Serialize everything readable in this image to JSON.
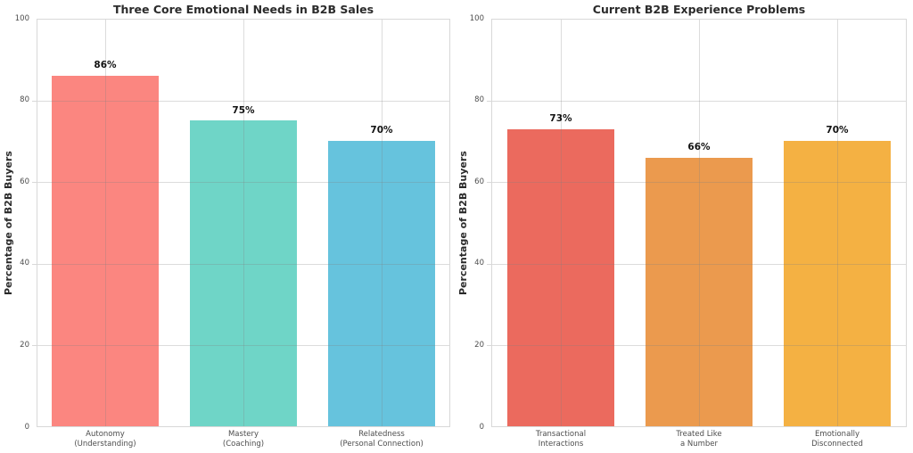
{
  "style": {
    "background": "#ffffff",
    "spine_color": "#d8d8d8",
    "grid_color": "rgba(130,130,130,0.28)",
    "tick_mark_color": "#d8d8d8",
    "tick_label_color": "#4d4d4d",
    "title_color": "#2b2b2b",
    "value_label_color": "#111111"
  },
  "chart_data": [
    {
      "type": "bar",
      "title": "Three Core Emotional Needs in B2B Sales",
      "ylabel": "Percentage of B2B Buyers",
      "xlabel": "",
      "ylim": [
        0,
        100
      ],
      "yticks": [
        0,
        20,
        40,
        60,
        80,
        100
      ],
      "categories": [
        [
          "Autonomy",
          "(Understanding)"
        ],
        [
          "Mastery",
          "(Coaching)"
        ],
        [
          "Relatedness",
          "(Personal Connection)"
        ]
      ],
      "values": [
        86,
        75,
        70
      ],
      "value_labels": [
        "86%",
        "75%",
        "70%"
      ],
      "bar_colors": [
        "#FB8680",
        "#6FD5C7",
        "#66C3DD"
      ],
      "grid": true,
      "legend": "none"
    },
    {
      "type": "bar",
      "title": "Current B2B Experience Problems",
      "ylabel": "Percentage of B2B Buyers",
      "xlabel": "",
      "ylim": [
        0,
        100
      ],
      "yticks": [
        0,
        20,
        40,
        60,
        80,
        100
      ],
      "categories": [
        [
          "Transactional",
          "Interactions"
        ],
        [
          "Treated Like",
          "a Number"
        ],
        [
          "Emotionally",
          "Disconnected"
        ]
      ],
      "values": [
        73,
        66,
        70
      ],
      "value_labels": [
        "73%",
        "66%",
        "70%"
      ],
      "bar_colors": [
        "#EB6A5E",
        "#EB9A4E",
        "#F4B143"
      ],
      "grid": true,
      "legend": "none"
    }
  ]
}
